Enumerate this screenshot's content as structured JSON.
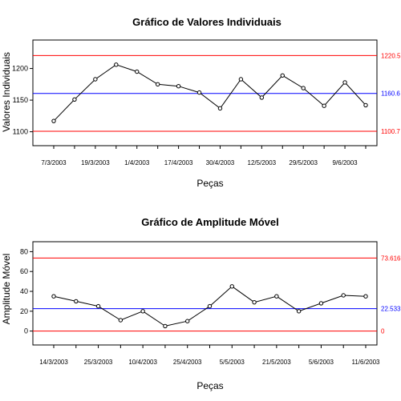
{
  "chart_data": [
    {
      "type": "line",
      "title": "Gráfico de Valores Individuais",
      "xlabel": "Peças",
      "ylabel": "Valores Individuais",
      "ylim": [
        1078,
        1245
      ],
      "yticks": [
        1100,
        1150,
        1200
      ],
      "x_tick_labels": [
        "7/3/2003",
        "19/3/2003",
        "1/4/2003",
        "17/4/2003",
        "30/4/2003",
        "12/5/2003",
        "29/5/2003",
        "9/6/2003"
      ],
      "series": [
        {
          "values": [
            1117,
            1151,
            1183,
            1206,
            1195,
            1175,
            1172,
            1162,
            1137,
            1183,
            1154,
            1189,
            1169,
            1141,
            1178,
            1142
          ]
        }
      ],
      "control_limits": [
        {
          "label": "1220.5",
          "value": 1220.5,
          "color": "#ff0000"
        },
        {
          "label": "1160.6",
          "value": 1160.6,
          "color": "#0000ff"
        },
        {
          "label": "1100.7",
          "value": 1100.7,
          "color": "#ff0000"
        }
      ],
      "grid": false
    },
    {
      "type": "line",
      "title": "Gráfico de Amplitude Móvel",
      "xlabel": "Peças",
      "ylabel": "Amplitude Móvel",
      "ylim": [
        -14,
        90
      ],
      "yticks": [
        0,
        20,
        40,
        60,
        80
      ],
      "x_tick_labels": [
        "14/3/2003",
        "25/3/2003",
        "10/4/2003",
        "25/4/2003",
        "5/5/2003",
        "21/5/2003",
        "5/6/2003",
        "11/6/2003"
      ],
      "series": [
        {
          "values": [
            35,
            30,
            25,
            11,
            20,
            5,
            10,
            25,
            45,
            29,
            35,
            20,
            28,
            36,
            35
          ]
        }
      ],
      "control_limits": [
        {
          "label": "73.616",
          "value": 73.616,
          "color": "#ff0000"
        },
        {
          "label": "22.533",
          "value": 22.533,
          "color": "#0000ff"
        },
        {
          "label": "0",
          "value": 0,
          "color": "#ff0000"
        }
      ],
      "grid": false
    }
  ]
}
